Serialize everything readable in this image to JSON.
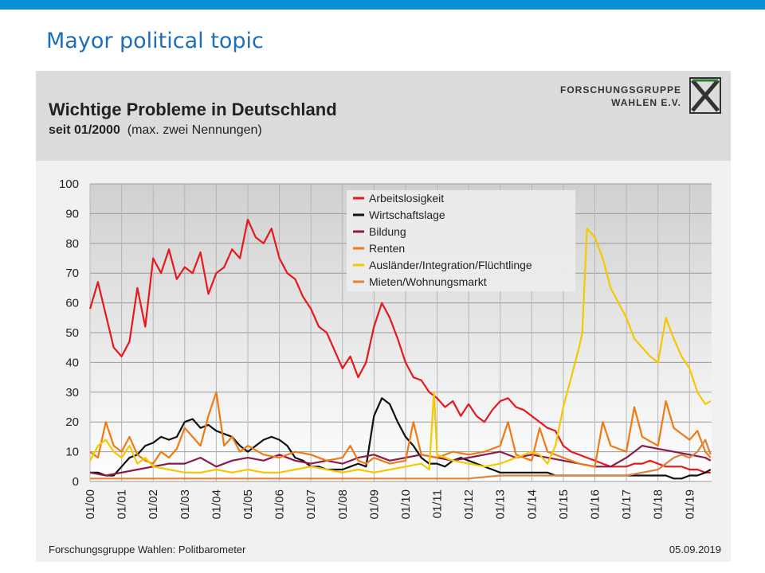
{
  "slide": {
    "title": "Mayor political topic"
  },
  "chart_panel": {
    "title": "Wichtige Probleme in Deutschland",
    "subtitle_bold": "seit 01/2000",
    "subtitle_rest": "(max. zwei Nennungen)",
    "logo_line1": "FORSCHUNGSGRUPPE",
    "logo_line2": "WAHLEN E.V.",
    "source": "Forschungsgruppe Wahlen: Politbarometer",
    "date": "05.09.2019"
  },
  "colors": {
    "Arbeitslosigkeit": "#e4191c",
    "Wirtschaftslage": "#111111",
    "Bildung": "#8b1a4a",
    "Renten": "#f07a12",
    "Auslaender": "#f5c800",
    "Mieten": "#e0823a"
  },
  "chart_data": {
    "type": "line",
    "title": "Wichtige Probleme in Deutschland",
    "subtitle": "seit 01/2000 (max. zwei Nennungen)",
    "xlabel": "",
    "ylabel": "",
    "ylim": [
      0,
      100
    ],
    "yticks": [
      0,
      10,
      20,
      30,
      40,
      50,
      60,
      70,
      80,
      90,
      100
    ],
    "xlim": [
      2000.0,
      2019.7
    ],
    "xticks": [
      {
        "label": "01/00",
        "x": 2000
      },
      {
        "label": "01/01",
        "x": 2001
      },
      {
        "label": "01/02",
        "x": 2002
      },
      {
        "label": "01/03",
        "x": 2003
      },
      {
        "label": "01/04",
        "x": 2004
      },
      {
        "label": "01/05",
        "x": 2005
      },
      {
        "label": "01/06",
        "x": 2006
      },
      {
        "label": "01/07",
        "x": 2007
      },
      {
        "label": "01/08",
        "x": 2008
      },
      {
        "label": "01/09",
        "x": 2009
      },
      {
        "label": "01/10",
        "x": 2010
      },
      {
        "label": "01/11",
        "x": 2011
      },
      {
        "label": "01/12",
        "x": 2012
      },
      {
        "label": "01/13",
        "x": 2013
      },
      {
        "label": "01/14",
        "x": 2014
      },
      {
        "label": "01/15",
        "x": 2015
      },
      {
        "label": "01/16",
        "x": 2016
      },
      {
        "label": "01/17",
        "x": 2017
      },
      {
        "label": "01/18",
        "x": 2018
      },
      {
        "label": "01/19",
        "x": 2019
      }
    ],
    "grid": true,
    "legend_position": "top-center",
    "series": [
      {
        "name": "Arbeitslosigkeit",
        "color_key": "Arbeitslosigkeit",
        "x": [
          2000.0,
          2000.25,
          2000.5,
          2000.75,
          2001.0,
          2001.25,
          2001.5,
          2001.75,
          2002.0,
          2002.25,
          2002.5,
          2002.75,
          2003.0,
          2003.25,
          2003.5,
          2003.75,
          2004.0,
          2004.25,
          2004.5,
          2004.75,
          2005.0,
          2005.25,
          2005.5,
          2005.75,
          2006.0,
          2006.25,
          2006.5,
          2006.75,
          2007.0,
          2007.25,
          2007.5,
          2007.75,
          2008.0,
          2008.25,
          2008.5,
          2008.75,
          2009.0,
          2009.25,
          2009.5,
          2009.75,
          2010.0,
          2010.25,
          2010.5,
          2010.75,
          2011.0,
          2011.25,
          2011.5,
          2011.75,
          2012.0,
          2012.25,
          2012.5,
          2012.75,
          2013.0,
          2013.25,
          2013.5,
          2013.75,
          2014.0,
          2014.25,
          2014.5,
          2014.75,
          2015.0,
          2015.25,
          2015.5,
          2015.75,
          2016.0,
          2016.25,
          2016.5,
          2016.75,
          2017.0,
          2017.25,
          2017.5,
          2017.75,
          2018.0,
          2018.25,
          2018.5,
          2018.75,
          2019.0,
          2019.25,
          2019.5,
          2019.67
        ],
        "y": [
          58,
          67,
          56,
          45,
          42,
          47,
          65,
          52,
          75,
          70,
          78,
          68,
          72,
          70,
          77,
          63,
          70,
          72,
          78,
          75,
          88,
          82,
          80,
          85,
          75,
          70,
          68,
          62,
          58,
          52,
          50,
          44,
          38,
          42,
          35,
          40,
          52,
          60,
          55,
          48,
          40,
          35,
          34,
          30,
          28,
          25,
          27,
          22,
          26,
          22,
          20,
          24,
          27,
          28,
          25,
          24,
          22,
          20,
          18,
          17,
          12,
          10,
          9,
          8,
          7,
          6,
          5,
          5,
          5,
          6,
          6,
          7,
          6,
          5,
          5,
          5,
          4,
          4,
          3,
          3
        ]
      },
      {
        "name": "Wirtschaftslage",
        "color_key": "Wirtschaftslage",
        "x": [
          2000.0,
          2000.25,
          2000.5,
          2000.75,
          2001.0,
          2001.25,
          2001.5,
          2001.75,
          2002.0,
          2002.25,
          2002.5,
          2002.75,
          2003.0,
          2003.25,
          2003.5,
          2003.75,
          2004.0,
          2004.25,
          2004.5,
          2004.75,
          2005.0,
          2005.25,
          2005.5,
          2005.75,
          2006.0,
          2006.25,
          2006.5,
          2006.75,
          2007.0,
          2007.25,
          2007.5,
          2007.75,
          2008.0,
          2008.25,
          2008.5,
          2008.75,
          2009.0,
          2009.25,
          2009.5,
          2009.75,
          2010.0,
          2010.25,
          2010.5,
          2010.75,
          2011.0,
          2011.25,
          2011.5,
          2011.75,
          2012.0,
          2012.25,
          2012.5,
          2012.75,
          2013.0,
          2013.25,
          2013.5,
          2013.75,
          2014.0,
          2014.25,
          2014.5,
          2014.75,
          2015.0,
          2015.25,
          2015.5,
          2015.75,
          2016.0,
          2016.25,
          2016.5,
          2016.75,
          2017.0,
          2017.25,
          2017.5,
          2017.75,
          2018.0,
          2018.25,
          2018.5,
          2018.75,
          2019.0,
          2019.25,
          2019.5,
          2019.67
        ],
        "y": [
          3,
          3,
          2,
          2,
          5,
          8,
          9,
          12,
          13,
          15,
          14,
          15,
          20,
          21,
          18,
          19,
          17,
          16,
          15,
          12,
          10,
          12,
          14,
          15,
          14,
          12,
          8,
          7,
          5,
          5,
          4,
          4,
          4,
          5,
          6,
          5,
          22,
          28,
          26,
          20,
          15,
          12,
          8,
          6,
          6,
          5,
          7,
          8,
          7,
          6,
          5,
          4,
          3,
          3,
          3,
          3,
          3,
          3,
          3,
          2,
          2,
          2,
          2,
          2,
          2,
          2,
          2,
          2,
          2,
          2,
          2,
          2,
          2,
          2,
          1,
          1,
          2,
          2,
          3,
          4
        ]
      },
      {
        "name": "Bildung",
        "color_key": "Bildung",
        "x": [
          2000.0,
          2000.5,
          2001.0,
          2001.5,
          2002.0,
          2002.5,
          2003.0,
          2003.5,
          2004.0,
          2004.5,
          2005.0,
          2005.5,
          2006.0,
          2006.5,
          2007.0,
          2007.5,
          2008.0,
          2008.5,
          2009.0,
          2009.5,
          2010.0,
          2010.5,
          2011.0,
          2011.5,
          2012.0,
          2012.5,
          2013.0,
          2013.5,
          2014.0,
          2014.5,
          2015.0,
          2015.5,
          2016.0,
          2016.5,
          2017.0,
          2017.5,
          2018.0,
          2018.5,
          2019.0,
          2019.5,
          2019.67
        ],
        "y": [
          3,
          2,
          3,
          4,
          5,
          6,
          6,
          8,
          5,
          7,
          8,
          7,
          9,
          7,
          6,
          7,
          6,
          8,
          9,
          7,
          8,
          9,
          8,
          7,
          8,
          9,
          10,
          8,
          9,
          8,
          7,
          6,
          5,
          5,
          8,
          12,
          11,
          10,
          9,
          8,
          7
        ]
      },
      {
        "name": "Renten",
        "color_key": "Renten",
        "x": [
          2000.0,
          2000.25,
          2000.5,
          2000.75,
          2001.0,
          2001.25,
          2001.5,
          2001.75,
          2002.0,
          2002.25,
          2002.5,
          2002.75,
          2003.0,
          2003.25,
          2003.5,
          2003.75,
          2004.0,
          2004.25,
          2004.5,
          2004.75,
          2005.0,
          2005.5,
          2006.0,
          2006.5,
          2007.0,
          2007.5,
          2008.0,
          2008.25,
          2008.5,
          2008.75,
          2009.0,
          2009.5,
          2010.0,
          2010.25,
          2010.5,
          2011.0,
          2011.5,
          2012.0,
          2012.5,
          2013.0,
          2013.25,
          2013.5,
          2014.0,
          2014.25,
          2014.5,
          2015.0,
          2015.5,
          2016.0,
          2016.25,
          2016.5,
          2017.0,
          2017.25,
          2017.5,
          2018.0,
          2018.25,
          2018.5,
          2019.0,
          2019.25,
          2019.5,
          2019.67
        ],
        "y": [
          10,
          8,
          20,
          12,
          10,
          15,
          9,
          7,
          6,
          10,
          8,
          11,
          18,
          15,
          12,
          22,
          30,
          12,
          15,
          10,
          12,
          9,
          8,
          10,
          9,
          7,
          8,
          12,
          7,
          6,
          8,
          6,
          7,
          20,
          9,
          8,
          10,
          9,
          10,
          12,
          20,
          9,
          7,
          18,
          10,
          8,
          6,
          5,
          20,
          12,
          10,
          25,
          15,
          12,
          27,
          18,
          14,
          17,
          10,
          8
        ]
      },
      {
        "name": "Ausländer/Integration/Flüchtlinge",
        "color_key": "Auslaender",
        "x": [
          2000.0,
          2000.25,
          2000.5,
          2000.75,
          2001.0,
          2001.25,
          2001.5,
          2001.75,
          2002.0,
          2002.5,
          2003.0,
          2003.5,
          2004.0,
          2004.5,
          2005.0,
          2005.5,
          2006.0,
          2006.5,
          2007.0,
          2007.5,
          2008.0,
          2008.5,
          2009.0,
          2009.5,
          2010.0,
          2010.5,
          2010.75,
          2010.9,
          2011.0,
          2011.5,
          2012.0,
          2012.5,
          2013.0,
          2013.5,
          2014.0,
          2014.25,
          2014.5,
          2014.75,
          2015.0,
          2015.25,
          2015.5,
          2015.6,
          2015.75,
          2016.0,
          2016.25,
          2016.5,
          2016.75,
          2017.0,
          2017.25,
          2017.5,
          2017.75,
          2018.0,
          2018.25,
          2018.5,
          2018.75,
          2019.0,
          2019.25,
          2019.5,
          2019.67
        ],
        "y": [
          7,
          12,
          14,
          10,
          8,
          12,
          6,
          8,
          5,
          4,
          3,
          3,
          4,
          3,
          4,
          3,
          3,
          4,
          5,
          4,
          3,
          4,
          3,
          4,
          5,
          6,
          4,
          30,
          9,
          7,
          6,
          5,
          6,
          8,
          10,
          9,
          6,
          12,
          25,
          35,
          45,
          50,
          85,
          82,
          75,
          65,
          60,
          55,
          48,
          45,
          42,
          40,
          55,
          48,
          42,
          38,
          30,
          26,
          27
        ]
      },
      {
        "name": "Mieten/Wohnungsmarkt",
        "color_key": "Mieten",
        "x": [
          2000.0,
          2002.0,
          2004.0,
          2006.0,
          2008.0,
          2010.0,
          2012.0,
          2013.0,
          2014.0,
          2015.0,
          2016.0,
          2017.0,
          2017.5,
          2018.0,
          2018.25,
          2018.5,
          2018.75,
          2019.0,
          2019.25,
          2019.5,
          2019.67
        ],
        "y": [
          1,
          1,
          1,
          1,
          1,
          1,
          1,
          2,
          2,
          2,
          2,
          2,
          3,
          4,
          6,
          8,
          9,
          8,
          10,
          14,
          9
        ]
      }
    ]
  }
}
